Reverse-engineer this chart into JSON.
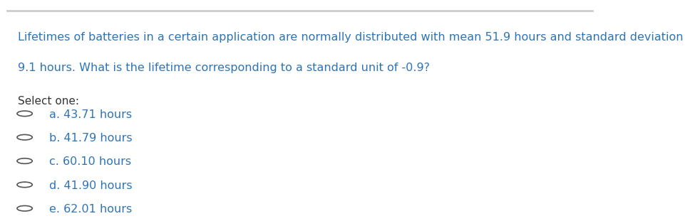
{
  "question_line1": "Lifetimes of batteries in a certain application are normally distributed with mean 51.9 hours and standard deviation",
  "question_line2": "9.1 hours. What is the lifetime corresponding to a standard unit of -0.9?",
  "select_one": "Select one:",
  "options": [
    "a. 43.71 hours",
    "b. 41.79 hours",
    "c. 60.10 hours",
    "d. 41.90 hours",
    "e. 62.01 hours"
  ],
  "text_color": "#2e74b5",
  "bg_color": "#ffffff",
  "select_color": "#333333",
  "font_size_question": 11.5,
  "font_size_options": 11.5,
  "font_size_select": 11.0,
  "top_bar_color": "#cccccc",
  "circle_color": "#555555"
}
